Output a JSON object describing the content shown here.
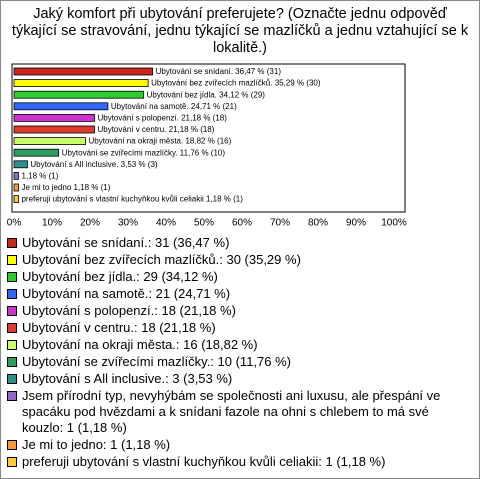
{
  "chart_data": {
    "type": "bar",
    "title": "Jaký komfort při ubytování preferujete? (Označte jednu odpověď týkající se stravování, jednu týkající se mazlíčků a jednu vztahující se k lokalitě.)",
    "categories": [
      "Ubytování se snídaní.",
      "Ubytování bez zvířecích mazlíčků.",
      "Ubytování bez jídla.",
      "Ubytování na samotě.",
      "Ubytování s polopenzí.",
      "Ubytování v centru.",
      "Ubytování na okraji města.",
      "Ubytování se zvířecími mazlíčky.",
      "Ubytování s All inclusive.",
      "Jsem přírodní typ, nevyhýbám se společnosti ani luxusu, ale přespání ve spacáku pod hvězdami a k snídani fazole na ohni s chlebem to má své kouzlo",
      "Je mi to jedno",
      "preferuji ubytování s vlastní kuchyňkou kvůli celiakii"
    ],
    "values": [
      36.47,
      35.29,
      34.12,
      24.71,
      21.18,
      21.18,
      18.82,
      11.76,
      3.53,
      1.18,
      1.18,
      1.18
    ],
    "value_labels": [
      "Ubytování se snídaní. 36,47 % (31)",
      "Ubytování bez zvířecích mazlíčků. 35,29 % (30)",
      "Ubytování bez jídla. 34,12 % (29)",
      "Ubytování na samotě. 24,71 % (21)",
      "Ubytování s polopenzí. 21,18 % (18)",
      "Ubytování v centru. 21,18 % (18)",
      "Ubytování na okraji města. 18,82 % (16)",
      "Ubytování se zvířecími mazlíčky. 11,76 % (10)",
      "Ubytování s All inclusive. 3,53 % (3)",
      "1,18 % (1)",
      "Je mi to jedno 1,18 % (1)",
      "preferuji ubytování s vlastní kuchyňkou kvůli celiakii 1,18 % (1)"
    ],
    "legend_labels": [
      "Ubytování se snídaní.: 31 (36,47 %)",
      "Ubytování bez zvířecích mazlíčků.: 30 (35,29 %)",
      "Ubytování bez jídla.: 29 (34,12 %)",
      "Ubytování na samotě.: 21 (24,71 %)",
      "Ubytování s polopenzí.: 18 (21,18 %)",
      "Ubytování v centru.: 18 (21,18 %)",
      "Ubytování na okraji města.: 16 (18,82 %)",
      "Ubytování se zvířecími mazlíčky.: 10 (11,76 %)",
      "Ubytování s All inclusive.: 3 (3,53 %)",
      "Jsem přírodní typ, nevyhýbám se společnosti ani luxusu, ale přespání ve spacáku pod hvězdami a k snídani fazole na ohni s chlebem to má své kouzlo: 1 (1,18 %)",
      "Je mi to jedno: 1 (1,18 %)",
      "preferuji ubytování s vlastní kuchyňkou kvůli celiakii: 1 (1,18 %)"
    ],
    "colors": [
      "#c8281e",
      "#ffff00",
      "#2ecc2e",
      "#3366ff",
      "#cc33cc",
      "#e03a2a",
      "#ccff66",
      "#2e9e5e",
      "#2e8f8f",
      "#9966cc",
      "#ff9933",
      "#ffcc33"
    ],
    "xlim": [
      0,
      100
    ],
    "xticks": [
      {
        "value": 0,
        "label": "0%"
      },
      {
        "value": 10,
        "label": "10%"
      },
      {
        "value": 20,
        "label": "20%"
      },
      {
        "value": 30,
        "label": "30%"
      },
      {
        "value": 40,
        "label": "40%"
      },
      {
        "value": 50,
        "label": "50%"
      },
      {
        "value": 60,
        "label": "60%"
      },
      {
        "value": 70,
        "label": "70%"
      },
      {
        "value": 80,
        "label": "80%"
      },
      {
        "value": 90,
        "label": "90%"
      },
      {
        "value": 100,
        "label": "100%"
      }
    ]
  }
}
